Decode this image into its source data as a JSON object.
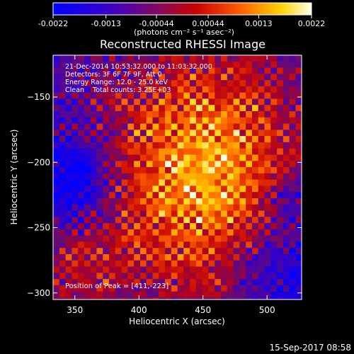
{
  "chart_data": {
    "type": "heatmap",
    "title": "Reconstructed RHESSI Image",
    "xlabel": "Heliocentric X (arcsec)",
    "ylabel": "Heliocentric Y (arcsec)",
    "xlim": [
      333,
      527
    ],
    "ylim": [
      -305,
      -118
    ],
    "x_ticks": [
      350,
      400,
      450,
      500
    ],
    "y_ticks": [
      -150,
      -200,
      -250,
      -300
    ],
    "colorbar": {
      "vmin": -0.0022,
      "vmax": 0.0022,
      "tick_values": [
        -0.0022,
        -0.0013,
        -0.00044,
        0.00044,
        0.0013,
        0.0022
      ],
      "tick_labels": [
        "-0.0022",
        "-0.0013",
        "-0.00044",
        "0.00044",
        "0.0013",
        "0.0022"
      ],
      "unit_label": "(photons cm⁻² s⁻¹ asec⁻²)"
    },
    "annotations": [
      "21-Dec-2014 10:53:32.000 to 11:03:32.000",
      "Detectors: 3F 6F 7F 9F, Att 0",
      "Energy Range: 12.0 - 25.0 keV",
      "Clean    Total counts: 3.25E+03"
    ],
    "peak_text": "Position of Peak = [411,-223]",
    "peak": [
      411,
      -223
    ],
    "grid": false
  },
  "footer": {
    "timestamp": "15-Sep-2017 08:58"
  }
}
